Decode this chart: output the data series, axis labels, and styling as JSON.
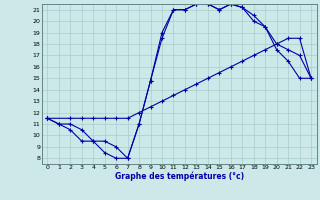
{
  "xlabel": "Graphe des températures (°c)",
  "bg_color": "#cce8e8",
  "line_color": "#0000aa",
  "grid_color": "#aacccc",
  "xlim": [
    -0.5,
    23.5
  ],
  "ylim": [
    7.5,
    21.5
  ],
  "xticks": [
    0,
    1,
    2,
    3,
    4,
    5,
    6,
    7,
    8,
    9,
    10,
    11,
    12,
    13,
    14,
    15,
    16,
    17,
    18,
    19,
    20,
    21,
    22,
    23
  ],
  "yticks": [
    8,
    9,
    10,
    11,
    12,
    13,
    14,
    15,
    16,
    17,
    18,
    19,
    20,
    21
  ],
  "curve1_x": [
    0,
    1,
    2,
    3,
    4,
    5,
    6,
    7,
    8,
    9,
    10,
    11,
    12,
    13,
    14,
    15,
    16,
    17,
    18,
    19,
    20,
    21,
    22,
    23
  ],
  "curve1_y": [
    11.5,
    11.0,
    10.5,
    9.5,
    9.5,
    8.5,
    8.0,
    8.0,
    11.0,
    14.8,
    18.5,
    21.0,
    21.0,
    21.5,
    21.5,
    21.0,
    21.5,
    21.2,
    20.5,
    19.5,
    17.5,
    16.5,
    15.0,
    15.0
  ],
  "curve2_x": [
    0,
    2,
    3,
    4,
    5,
    6,
    7,
    8,
    9,
    10,
    11,
    12,
    13,
    14,
    15,
    16,
    17,
    18,
    19,
    20,
    21,
    22,
    23
  ],
  "curve2_y": [
    11.5,
    11.5,
    11.5,
    11.5,
    11.5,
    11.5,
    11.5,
    12.0,
    12.5,
    13.0,
    13.5,
    14.0,
    14.5,
    15.0,
    15.5,
    16.0,
    16.5,
    17.0,
    17.5,
    18.0,
    18.5,
    18.5,
    15.0
  ],
  "curve3_x": [
    0,
    1,
    2,
    3,
    4,
    5,
    6,
    7,
    8,
    9,
    10,
    11,
    12,
    13,
    14,
    15,
    16,
    17,
    18,
    19,
    20,
    21,
    22,
    23
  ],
  "curve3_y": [
    11.5,
    11.0,
    11.0,
    10.5,
    9.5,
    9.5,
    9.0,
    8.0,
    11.0,
    14.8,
    19.0,
    21.0,
    21.0,
    21.5,
    21.5,
    21.0,
    21.5,
    21.2,
    20.0,
    19.5,
    18.0,
    17.5,
    17.0,
    15.0
  ]
}
